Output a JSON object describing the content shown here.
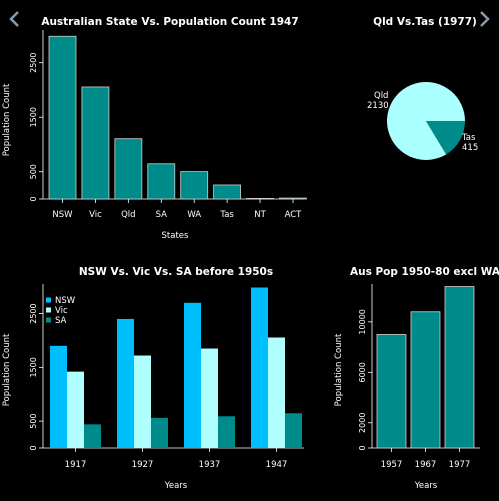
{
  "nav": {
    "prev_icon": "chevron-left-icon",
    "next_icon": "chevron-right-icon"
  },
  "colors": {
    "background": "#000000",
    "teal": "#008b8b",
    "nsw_blue": "#00bfff",
    "vic_light": "#b0ffff",
    "sa_teal": "#008b8b",
    "pie_qld": "#aaffff",
    "text": "#ffffff",
    "nav": "#8899aa"
  },
  "chart_data": [
    {
      "type": "bar",
      "title": "Australian State Vs. Population Count 1947",
      "xlabel": "States",
      "ylabel": "Population Count",
      "categories": [
        "NSW",
        "Vic",
        "Qld",
        "SA",
        "WA",
        "Tas",
        "NT",
        "ACT"
      ],
      "values": [
        2985,
        2055,
        1106,
        646,
        502,
        257,
        11,
        17
      ],
      "yticks": [
        0,
        500,
        1500,
        2500
      ],
      "ylim": [
        0,
        3100
      ],
      "grid": false
    },
    {
      "type": "pie",
      "title": "Qld Vs.Tas (1977)",
      "slices": [
        {
          "label": "Qld",
          "value": 2130
        },
        {
          "label": "Tas",
          "value": 415
        }
      ]
    },
    {
      "type": "bar",
      "title": "NSW Vs. Vic Vs. SA before 1950s",
      "xlabel": "Years",
      "ylabel": "Population Count",
      "categories": [
        "1917",
        "1927",
        "1937",
        "1947"
      ],
      "series": [
        {
          "name": "NSW",
          "values": [
            1900,
            2400,
            2700,
            2985
          ]
        },
        {
          "name": "Vic",
          "values": [
            1420,
            1720,
            1850,
            2055
          ]
        },
        {
          "name": "SA",
          "values": [
            440,
            560,
            590,
            646
          ]
        }
      ],
      "yticks": [
        0,
        500,
        1500,
        2500
      ],
      "ylim": [
        0,
        3050
      ],
      "legend": "top-left",
      "grid": false
    },
    {
      "type": "bar",
      "title": "Aus Pop 1950-80 excl WA",
      "xlabel": "Years",
      "ylabel": "Population Count",
      "categories": [
        "1957",
        "1967",
        "1977"
      ],
      "values": [
        9000,
        10800,
        12800
      ],
      "yticks": [
        0,
        2000,
        6000,
        10000
      ],
      "ylim": [
        0,
        13000
      ],
      "grid": false
    }
  ]
}
